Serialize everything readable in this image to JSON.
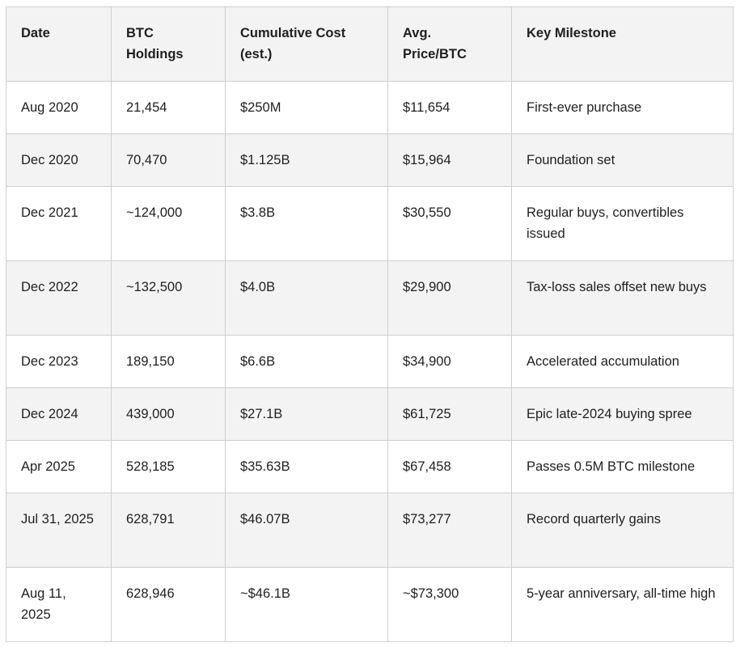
{
  "table": {
    "headers": [
      "Date",
      "BTC Holdings",
      "Cumulative Cost (est.)",
      "Avg. Price/BTC",
      "Key Milestone"
    ],
    "rows": [
      [
        "Aug 2020",
        "21,454",
        "$250M",
        "$11,654",
        "First-ever purchase"
      ],
      [
        "Dec 2020",
        "70,470",
        "$1.125B",
        "$15,964",
        "Foundation set"
      ],
      [
        "Dec 2021",
        "~124,000",
        "$3.8B",
        "$30,550",
        "Regular buys, convertibles issued"
      ],
      [
        "Dec 2022",
        "~132,500",
        "$4.0B",
        "$29,900",
        "Tax-loss sales offset new buys"
      ],
      [
        "Dec 2023",
        "189,150",
        "$6.6B",
        "$34,900",
        "Accelerated accumulation"
      ],
      [
        "Dec 2024",
        "439,000",
        "$27.1B",
        "$61,725",
        "Epic late-2024 buying spree"
      ],
      [
        "Apr 2025",
        "528,185",
        "$35.63B",
        "$67,458",
        "Passes 0.5M BTC milestone"
      ],
      [
        "Jul 31, 2025",
        "628,791",
        "$46.07B",
        "$73,277",
        "Record quarterly gains"
      ],
      [
        "Aug 11, 2025",
        "628,946",
        "~$46.1B",
        "~$73,300",
        "5-year anniversary, all-time high"
      ]
    ]
  }
}
